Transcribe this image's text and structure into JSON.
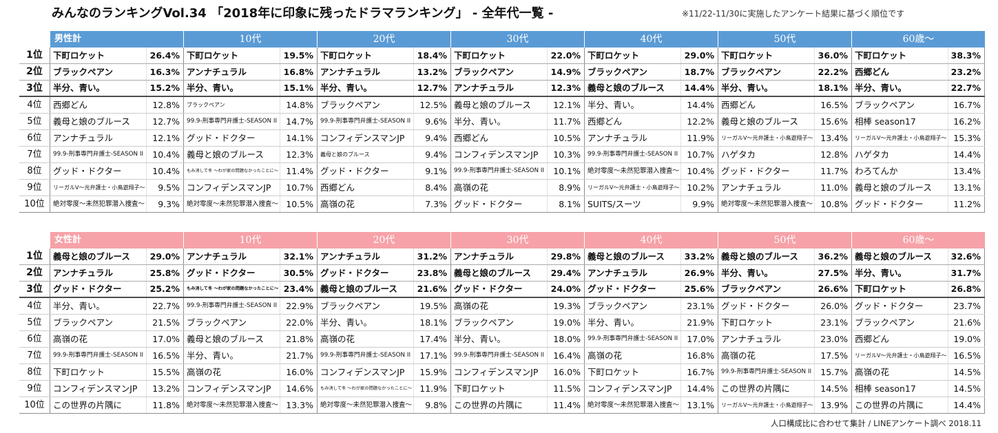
{
  "title": "みんなのランキングVol.34 「2018年に印象に残ったドラマランキング」 - 全年代一覧 -",
  "note": "※11/22-11/30に実施したアンケート結果に基づく順位です",
  "footer": "人口構成比に合わせて集計 / LINEアンケート調べ 2018.11",
  "rank_labels": [
    "1位",
    "2位",
    "3位",
    "4位",
    "5位",
    "6位",
    "7位",
    "8位",
    "9位",
    "10位"
  ],
  "tables": [
    {
      "header_color": "#5b9bd5",
      "columns": [
        "男性計",
        "10代",
        "20代",
        "30代",
        "40代",
        "50代",
        "60歳～"
      ],
      "rows": [
        [
          [
            "下町ロケット",
            "26.4%"
          ],
          [
            "下町ロケット",
            "19.5%"
          ],
          [
            "下町ロケット",
            "18.4%"
          ],
          [
            "下町ロケット",
            "22.0%"
          ],
          [
            "下町ロケット",
            "29.0%"
          ],
          [
            "下町ロケット",
            "36.0%"
          ],
          [
            "下町ロケット",
            "38.3%"
          ]
        ],
        [
          [
            "ブラックペアン",
            "16.3%"
          ],
          [
            "アンナチュラル",
            "16.8%"
          ],
          [
            "アンナチュラル",
            "13.2%"
          ],
          [
            "ブラックペアン",
            "14.9%"
          ],
          [
            "ブラックペアン",
            "18.7%"
          ],
          [
            "ブラックペアン",
            "22.2%"
          ],
          [
            "西郷どん",
            "23.2%"
          ]
        ],
        [
          [
            "半分、青い。",
            "15.2%"
          ],
          [
            "半分、青い。",
            "15.1%"
          ],
          [
            "半分、青い。",
            "12.7%"
          ],
          [
            "アンナチュラル",
            "12.3%"
          ],
          [
            "義母と娘のブルース",
            "14.4%"
          ],
          [
            "半分、青い。",
            "18.1%"
          ],
          [
            "半分、青い。",
            "22.7%"
          ]
        ],
        [
          [
            "西郷どん",
            "12.8%"
          ],
          [
            "ブラックペアン",
            "14.8%"
          ],
          [
            "ブラックペアン",
            "12.5%"
          ],
          [
            "義母と娘のブルース",
            "12.1%"
          ],
          [
            "半分、青い。",
            "14.4%"
          ],
          [
            "西郷どん",
            "16.5%"
          ],
          [
            "ブラックペアン",
            "16.7%"
          ]
        ],
        [
          [
            "義母と娘のブルース",
            "12.7%"
          ],
          [
            "99.9-刑事専門弁護士-SEASON II",
            "14.7%"
          ],
          [
            "99.9-刑事専門弁護士-SEASON II",
            "9.6%"
          ],
          [
            "半分、青い。",
            "11.7%"
          ],
          [
            "西郷どん",
            "12.2%"
          ],
          [
            "義母と娘のブルース",
            "15.6%"
          ],
          [
            "相棒 season17",
            "16.2%"
          ]
        ],
        [
          [
            "アンナチュラル",
            "12.1%"
          ],
          [
            "グッド・ドクター",
            "14.1%"
          ],
          [
            "コンフィデンスマンJP",
            "9.4%"
          ],
          [
            "西郷どん",
            "10.5%"
          ],
          [
            "アンナチュラル",
            "11.9%"
          ],
          [
            "リーガルV～元弁護士・小鳥遊翔子～",
            "13.4%"
          ],
          [
            "リーガルV～元弁護士・小鳥遊翔子～",
            "15.3%"
          ]
        ],
        [
          [
            "99.9-刑事専門弁護士-SEASON II",
            "10.4%"
          ],
          [
            "義母と娘のブルース",
            "12.3%"
          ],
          [
            "義母と娘のブルース",
            "9.4%"
          ],
          [
            "コンフィデンスマンJP",
            "10.3%"
          ],
          [
            "99.9-刑事専門弁護士-SEASON II",
            "10.7%"
          ],
          [
            "ハゲタカ",
            "12.8%"
          ],
          [
            "ハゲタカ",
            "14.4%"
          ]
        ],
        [
          [
            "グッド・ドクター",
            "10.4%"
          ],
          [
            "もみ消して冬 ～わが家の問題なかったことに～",
            "11.4%"
          ],
          [
            "グッド・ドクター",
            "9.1%"
          ],
          [
            "99.9-刑事専門弁護士-SEASON II",
            "10.1%"
          ],
          [
            "絶対零度～未然犯罪潜入捜査～",
            "10.4%"
          ],
          [
            "グッド・ドクター",
            "11.7%"
          ],
          [
            "わろてんか",
            "13.4%"
          ]
        ],
        [
          [
            "リーガルV～元弁護士・小鳥遊翔子～",
            "9.5%"
          ],
          [
            "コンフィデンスマンJP",
            "10.7%"
          ],
          [
            "西郷どん",
            "8.4%"
          ],
          [
            "高嶺の花",
            "8.9%"
          ],
          [
            "リーガルV～元弁護士・小鳥遊翔子～",
            "10.2%"
          ],
          [
            "アンナチュラル",
            "11.0%"
          ],
          [
            "義母と娘のブルース",
            "13.1%"
          ]
        ],
        [
          [
            "絶対零度～未然犯罪潜入捜査～",
            "9.3%"
          ],
          [
            "絶対零度～未然犯罪潜入捜査～",
            "10.5%"
          ],
          [
            "高嶺の花",
            "7.3%"
          ],
          [
            "グッド・ドクター",
            "8.1%"
          ],
          [
            "SUITS/スーツ",
            "9.9%"
          ],
          [
            "絶対零度～未然犯罪潜入捜査～",
            "10.8%"
          ],
          [
            "グッド・ドクター",
            "11.2%"
          ]
        ]
      ]
    },
    {
      "header_color": "#f6a2a8",
      "columns": [
        "女性計",
        "10代",
        "20代",
        "30代",
        "40代",
        "50代",
        "60歳～"
      ],
      "rows": [
        [
          [
            "義母と娘のブルース",
            "29.0%"
          ],
          [
            "アンナチュラル",
            "32.1%"
          ],
          [
            "アンナチュラル",
            "31.2%"
          ],
          [
            "アンナチュラル",
            "29.8%"
          ],
          [
            "義母と娘のブルース",
            "33.2%"
          ],
          [
            "義母と娘のブルース",
            "36.2%"
          ],
          [
            "義母と娘のブルース",
            "32.6%"
          ]
        ],
        [
          [
            "アンナチュラル",
            "25.8%"
          ],
          [
            "グッド・ドクター",
            "30.5%"
          ],
          [
            "グッド・ドクター",
            "23.8%"
          ],
          [
            "義母と娘のブルース",
            "29.4%"
          ],
          [
            "アンナチュラル",
            "26.9%"
          ],
          [
            "半分、青い。",
            "27.5%"
          ],
          [
            "半分、青い。",
            "31.7%"
          ]
        ],
        [
          [
            "グッド・ドクター",
            "25.2%"
          ],
          [
            "もみ消して冬 ～わが家の問題なかったことに～",
            "23.4%"
          ],
          [
            "義母と娘のブルース",
            "21.6%"
          ],
          [
            "グッド・ドクター",
            "24.0%"
          ],
          [
            "グッド・ドクター",
            "25.6%"
          ],
          [
            "ブラックペアン",
            "26.6%"
          ],
          [
            "下町ロケット",
            "26.8%"
          ]
        ],
        [
          [
            "半分、青い。",
            "22.7%"
          ],
          [
            "99.9-刑事専門弁護士-SEASON II",
            "22.9%"
          ],
          [
            "ブラックペアン",
            "19.5%"
          ],
          [
            "高嶺の花",
            "19.3%"
          ],
          [
            "ブラックペアン",
            "23.1%"
          ],
          [
            "グッド・ドクター",
            "26.0%"
          ],
          [
            "グッド・ドクター",
            "23.7%"
          ]
        ],
        [
          [
            "ブラックペアン",
            "21.5%"
          ],
          [
            "ブラックペアン",
            "22.0%"
          ],
          [
            "半分、青い。",
            "18.1%"
          ],
          [
            "ブラックペアン",
            "19.0%"
          ],
          [
            "半分、青い。",
            "21.9%"
          ],
          [
            "下町ロケット",
            "23.1%"
          ],
          [
            "ブラックペアン",
            "21.6%"
          ]
        ],
        [
          [
            "高嶺の花",
            "17.0%"
          ],
          [
            "義母と娘のブルース",
            "21.8%"
          ],
          [
            "高嶺の花",
            "17.4%"
          ],
          [
            "半分、青い。",
            "18.0%"
          ],
          [
            "99.9-刑事専門弁護士-SEASON II",
            "17.0%"
          ],
          [
            "アンナチュラル",
            "23.0%"
          ],
          [
            "西郷どん",
            "19.0%"
          ]
        ],
        [
          [
            "99.9-刑事専門弁護士-SEASON II",
            "16.5%"
          ],
          [
            "半分、青い。",
            "21.7%"
          ],
          [
            "99.9-刑事専門弁護士-SEASON II",
            "17.1%"
          ],
          [
            "99.9-刑事専門弁護士-SEASON II",
            "16.4%"
          ],
          [
            "高嶺の花",
            "16.8%"
          ],
          [
            "高嶺の花",
            "17.5%"
          ],
          [
            "リーガルV～元弁護士・小鳥遊翔子～",
            "16.5%"
          ]
        ],
        [
          [
            "下町ロケット",
            "15.5%"
          ],
          [
            "高嶺の花",
            "16.0%"
          ],
          [
            "コンフィデンスマンJP",
            "15.9%"
          ],
          [
            "コンフィデンスマンJP",
            "16.0%"
          ],
          [
            "下町ロケット",
            "16.7%"
          ],
          [
            "99.9-刑事専門弁護士-SEASON II",
            "15.7%"
          ],
          [
            "高嶺の花",
            "14.5%"
          ]
        ],
        [
          [
            "コンフィデンスマンJP",
            "13.2%"
          ],
          [
            "コンフィデンスマンJP",
            "14.6%"
          ],
          [
            "もみ消して冬 ～わが家の問題なかったことに～",
            "11.9%"
          ],
          [
            "下町ロケット",
            "11.5%"
          ],
          [
            "コンフィデンスマンJP",
            "14.4%"
          ],
          [
            "この世界の片隅に",
            "14.5%"
          ],
          [
            "相棒 season17",
            "14.5%"
          ]
        ],
        [
          [
            "この世界の片隅に",
            "11.8%"
          ],
          [
            "絶対零度～未然犯罪潜入捜査～",
            "13.3%"
          ],
          [
            "絶対零度～未然犯罪潜入捜査～",
            "9.8%"
          ],
          [
            "この世界の片隅に",
            "11.4%"
          ],
          [
            "絶対零度～未然犯罪潜入捜査～",
            "13.1%"
          ],
          [
            "リーガルV～元弁護士・小鳥遊翔子～",
            "13.9%"
          ],
          [
            "この世界の片隅に",
            "14.4%"
          ]
        ]
      ]
    }
  ]
}
